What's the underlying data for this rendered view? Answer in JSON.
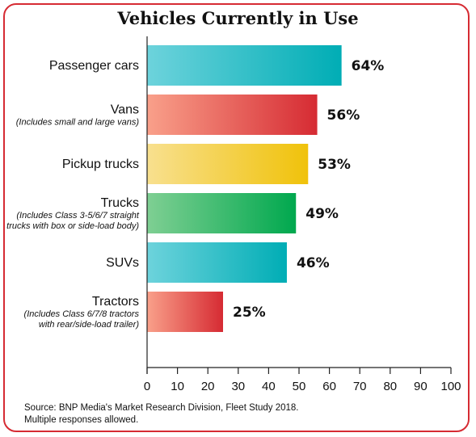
{
  "chart_data": {
    "type": "bar",
    "orientation": "horizontal",
    "title": "Vehicles Currently in Use",
    "categories": [
      "Passenger cars",
      "Vans",
      "Pickup trucks",
      "Trucks",
      "SUVs",
      "Tractors"
    ],
    "subtitles": [
      [],
      [
        "(Includes small and large vans)"
      ],
      [],
      [
        "(Includes Class 3-5/6/7 straight",
        "trucks with box or side-load body)"
      ],
      [],
      [
        "(Includes Class 6/7/8 tractors",
        "with rear/side-load trailer)"
      ]
    ],
    "values": [
      64,
      56,
      53,
      49,
      46,
      25
    ],
    "value_labels": [
      "64%",
      "56%",
      "53%",
      "49%",
      "46%",
      "25%"
    ],
    "xlim": [
      0,
      100
    ],
    "xticks": [
      0,
      10,
      20,
      30,
      40,
      50,
      60,
      70,
      80,
      90,
      100
    ],
    "colors": [
      [
        "#6dd3dc",
        "#00adb5"
      ],
      [
        "#f9a08a",
        "#d62b33"
      ],
      [
        "#f8e08f",
        "#f0c20a"
      ],
      [
        "#7fcf93",
        "#00a84e"
      ],
      [
        "#6dd3dc",
        "#00adb5"
      ],
      [
        "#f9a08a",
        "#d62b33"
      ]
    ],
    "grid": false
  },
  "footer": {
    "source": "Source: BNP Media's Market Research Division, Fleet Study 2018.",
    "note": "Multiple responses allowed."
  }
}
